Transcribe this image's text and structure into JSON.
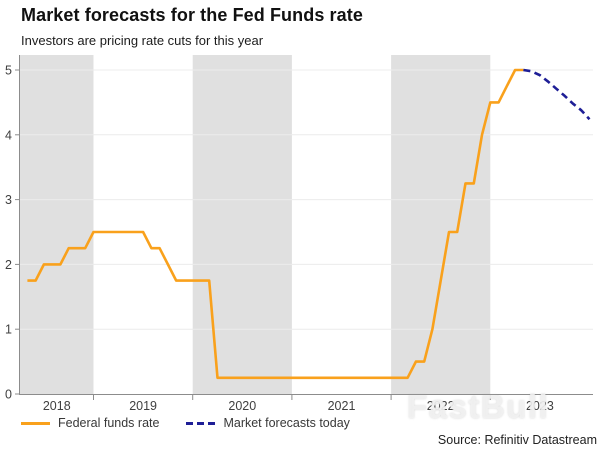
{
  "header": {
    "title": "Market forecasts for the Fed Funds rate",
    "subtitle": "Investors are pricing rate cuts for this year"
  },
  "legend": {
    "items": [
      {
        "label": "Federal funds rate",
        "style": "solid"
      },
      {
        "label": "Market forecasts today",
        "style": "dashed"
      }
    ]
  },
  "source": "Source: Refinitiv Datastream",
  "watermark": "FastBull",
  "colors": {
    "orange": "#F9A11C",
    "navy": "#1E1E96",
    "band": "#E0E0E0",
    "gridline": "#ECECEC",
    "axis": "#8C8C8C",
    "tick_label": "#404040"
  },
  "chart_data": {
    "type": "line",
    "title": "Market forecasts for the Fed Funds rate",
    "subtitle": "Investors are pricing rate cuts for this year",
    "xlabel": "",
    "ylabel": "",
    "ylim": [
      0,
      5
    ],
    "ytick_labels": [
      "0",
      "1",
      "2",
      "3",
      "4",
      "5"
    ],
    "x_year_labels": [
      "2018",
      "2019",
      "2020",
      "2021",
      "2022",
      "2023"
    ],
    "shaded_years": [
      2018,
      2020,
      2022
    ],
    "grid": "horizontal",
    "legend_position": "bottom-left",
    "series": [
      {
        "name": "Federal funds rate",
        "style": "solid",
        "color_key": "orange",
        "points": [
          [
            "2018-04",
            1.75
          ],
          [
            "2018-05",
            1.75
          ],
          [
            "2018-06",
            2
          ],
          [
            "2018-07",
            2
          ],
          [
            "2018-08",
            2
          ],
          [
            "2018-09",
            2.25
          ],
          [
            "2018-10",
            2.25
          ],
          [
            "2018-11",
            2.25
          ],
          [
            "2018-12",
            2.5
          ],
          [
            "2019-01",
            2.5
          ],
          [
            "2019-02",
            2.5
          ],
          [
            "2019-03",
            2.5
          ],
          [
            "2019-04",
            2.5
          ],
          [
            "2019-05",
            2.5
          ],
          [
            "2019-06",
            2.5
          ],
          [
            "2019-07",
            2.25
          ],
          [
            "2019-08",
            2.25
          ],
          [
            "2019-09",
            2
          ],
          [
            "2019-10",
            1.75
          ],
          [
            "2019-11",
            1.75
          ],
          [
            "2019-12",
            1.75
          ],
          [
            "2020-01",
            1.75
          ],
          [
            "2020-02",
            1.75
          ],
          [
            "2020-03",
            0.25
          ],
          [
            "2020-04",
            0.25
          ],
          [
            "2020-05",
            0.25
          ],
          [
            "2020-06",
            0.25
          ],
          [
            "2020-07",
            0.25
          ],
          [
            "2020-08",
            0.25
          ],
          [
            "2020-09",
            0.25
          ],
          [
            "2020-10",
            0.25
          ],
          [
            "2020-11",
            0.25
          ],
          [
            "2020-12",
            0.25
          ],
          [
            "2021-01",
            0.25
          ],
          [
            "2021-02",
            0.25
          ],
          [
            "2021-03",
            0.25
          ],
          [
            "2021-04",
            0.25
          ],
          [
            "2021-05",
            0.25
          ],
          [
            "2021-06",
            0.25
          ],
          [
            "2021-07",
            0.25
          ],
          [
            "2021-08",
            0.25
          ],
          [
            "2021-09",
            0.25
          ],
          [
            "2021-10",
            0.25
          ],
          [
            "2021-11",
            0.25
          ],
          [
            "2021-12",
            0.25
          ],
          [
            "2022-01",
            0.25
          ],
          [
            "2022-02",
            0.25
          ],
          [
            "2022-03",
            0.5
          ],
          [
            "2022-04",
            0.5
          ],
          [
            "2022-05",
            1
          ],
          [
            "2022-06",
            1.75
          ],
          [
            "2022-07",
            2.5
          ],
          [
            "2022-08",
            2.5
          ],
          [
            "2022-09",
            3.25
          ],
          [
            "2022-10",
            3.25
          ],
          [
            "2022-11",
            4
          ],
          [
            "2022-12",
            4.5
          ],
          [
            "2023-01",
            4.5
          ],
          [
            "2023-02",
            4.75
          ],
          [
            "2023-03",
            5
          ],
          [
            "2023-04",
            5
          ]
        ]
      },
      {
        "name": "Market forecasts today",
        "style": "dashed",
        "color_key": "navy",
        "points": [
          [
            "2023-04",
            5
          ],
          [
            "2023-05",
            4.98
          ],
          [
            "2023-06",
            4.92
          ],
          [
            "2023-07",
            4.82
          ],
          [
            "2023-08",
            4.71
          ],
          [
            "2023-09",
            4.6
          ],
          [
            "2023-10",
            4.48
          ],
          [
            "2023-11",
            4.38
          ],
          [
            "2023-12",
            4.24
          ]
        ]
      }
    ]
  }
}
